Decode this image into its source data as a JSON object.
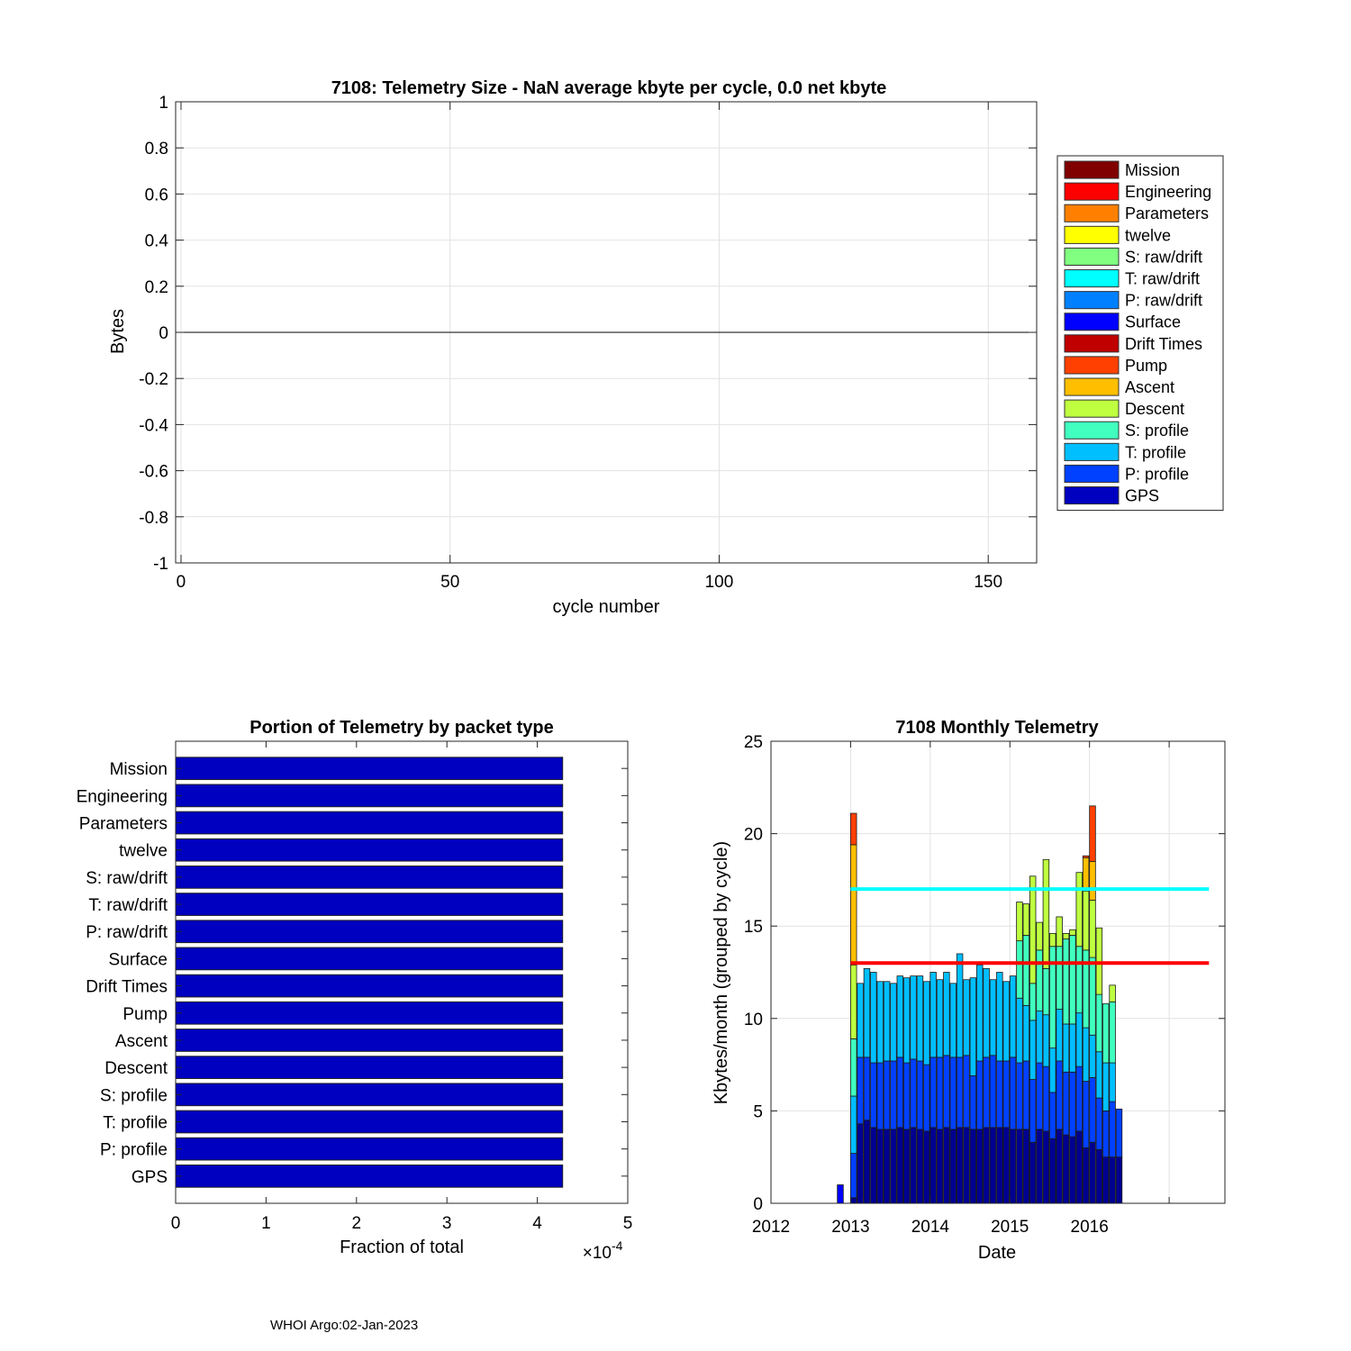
{
  "chart_data": [
    {
      "id": "telemetry-size",
      "type": "bar",
      "title": "7108: Telemetry Size -  NaN average kbyte per cycle,    0.0 net kbyte",
      "xlabel": "cycle number",
      "ylabel": "Bytes",
      "xlim": [
        -1,
        159
      ],
      "ylim": [
        -1,
        1
      ],
      "xticks": [
        "0",
        "50",
        "100",
        "150"
      ],
      "xtick_values": [
        0,
        50,
        100,
        150
      ],
      "yticks": [
        "1",
        "0.8",
        "0.6",
        "0.4",
        "0.2",
        "0",
        "-0.2",
        "-0.4",
        "-0.6",
        "-0.8",
        "-1"
      ],
      "ytick_values": [
        1,
        0.8,
        0.6,
        0.4,
        0.2,
        0,
        -0.2,
        -0.4,
        -0.6,
        -0.8,
        -1
      ],
      "grid": true,
      "series_values": "none (all zero)",
      "legend_placement": "outside-right",
      "legend": [
        {
          "label": "Mission",
          "color": "#800000"
        },
        {
          "label": "Engineering",
          "color": "#ff0000"
        },
        {
          "label": "Parameters",
          "color": "#ff8000"
        },
        {
          "label": "twelve",
          "color": "#ffff00"
        },
        {
          "label": "S: raw/drift",
          "color": "#80ff80"
        },
        {
          "label": "T: raw/drift",
          "color": "#00ffff"
        },
        {
          "label": "P: raw/drift",
          "color": "#0080ff"
        },
        {
          "label": "Surface",
          "color": "#0000ff"
        },
        {
          "label": "Drift Times",
          "color": "#c00000"
        },
        {
          "label": "Pump",
          "color": "#ff4000"
        },
        {
          "label": "Ascent",
          "color": "#ffbf00"
        },
        {
          "label": "Descent",
          "color": "#bfff40"
        },
        {
          "label": "S: profile",
          "color": "#40ffbf"
        },
        {
          "label": "T: profile",
          "color": "#00bfff"
        },
        {
          "label": "P: profile",
          "color": "#0040ff"
        },
        {
          "label": "GPS",
          "color": "#0000c0"
        }
      ]
    },
    {
      "id": "portion-by-packet",
      "type": "bar",
      "orientation": "horizontal",
      "title": "Portion of Telemetry by packet type",
      "xlabel": "Fraction of total",
      "x_exponent": "×10",
      "x_exponent_power": "-4",
      "xlim": [
        0,
        5
      ],
      "xticks": [
        "0",
        "1",
        "2",
        "3",
        "4",
        "5"
      ],
      "xtick_values": [
        0,
        1,
        2,
        3,
        4,
        5
      ],
      "categories": [
        "Mission",
        "Engineering",
        "Parameters",
        "twelve",
        "S: raw/drift",
        "T: raw/drift",
        "P: raw/drift",
        "Surface",
        "Drift Times",
        "Pump",
        "Ascent",
        "Descent",
        "S: profile",
        "T: profile",
        "P: profile",
        "GPS"
      ],
      "values": [
        4.28,
        4.28,
        4.28,
        4.28,
        4.28,
        4.28,
        4.28,
        4.28,
        4.28,
        4.28,
        4.28,
        4.28,
        4.28,
        4.28,
        4.28,
        4.28
      ],
      "bar_color": "#0000c0",
      "grid": false
    },
    {
      "id": "monthly-telemetry",
      "type": "bar",
      "stacked": true,
      "title": "7108 Monthly Telemetry",
      "xlabel": "Date",
      "ylabel": "Kbytes/month (grouped by cycle)",
      "xlim": [
        2012,
        2017.7
      ],
      "ylim": [
        0,
        25
      ],
      "xticks": [
        "2012",
        "2013",
        "2014",
        "2015",
        "2016",
        ""
      ],
      "xtick_values": [
        2012,
        2013,
        2014,
        2015,
        2016,
        2017
      ],
      "yticks": [
        "0",
        "5",
        "10",
        "15",
        "20",
        "25"
      ],
      "ytick_values": [
        0,
        5,
        10,
        15,
        20,
        25
      ],
      "grid": true,
      "reference_lines": [
        {
          "y": 17,
          "color": "#00ffff",
          "x_range": [
            2013,
            2017.5
          ]
        },
        {
          "y": 13,
          "color": "#ff0000",
          "x_range": [
            2013,
            2017.5
          ]
        }
      ],
      "segment_colors": [
        "#000090",
        "#0040ff",
        "#00bfff",
        "#40ffbf",
        "#bfff40",
        "#ffbf00",
        "#ff4000"
      ],
      "months": [
        {
          "date": "2012-11",
          "segments": [
            1.0
          ]
        },
        {
          "date": "2013-01",
          "segments": [
            0.3,
            2.4,
            3.1,
            3.1,
            4.0,
            6.5,
            1.7
          ]
        },
        {
          "date": "2013-02",
          "segments": [
            4.3,
            3.6,
            4.0
          ]
        },
        {
          "date": "2013-03",
          "segments": [
            4.5,
            3.4,
            4.8
          ]
        },
        {
          "date": "2013-04",
          "segments": [
            4.1,
            3.5,
            4.9
          ]
        },
        {
          "date": "2013-05",
          "segments": [
            4.0,
            3.6,
            4.4
          ]
        },
        {
          "date": "2013-06",
          "segments": [
            4.0,
            3.7,
            4.3
          ]
        },
        {
          "date": "2013-07",
          "segments": [
            4.0,
            3.7,
            4.2
          ]
        },
        {
          "date": "2013-08",
          "segments": [
            4.1,
            3.8,
            4.4
          ]
        },
        {
          "date": "2013-09",
          "segments": [
            4.0,
            3.6,
            4.6
          ]
        },
        {
          "date": "2013-10",
          "segments": [
            4.1,
            3.7,
            4.5
          ]
        },
        {
          "date": "2013-11",
          "segments": [
            4.0,
            3.7,
            4.6
          ]
        },
        {
          "date": "2013-12",
          "segments": [
            3.9,
            3.6,
            4.5
          ]
        },
        {
          "date": "2014-01",
          "segments": [
            4.1,
            3.8,
            4.6
          ]
        },
        {
          "date": "2014-02",
          "segments": [
            4.0,
            3.9,
            4.2
          ]
        },
        {
          "date": "2014-03",
          "segments": [
            4.1,
            3.9,
            4.5
          ]
        },
        {
          "date": "2014-04",
          "segments": [
            4.0,
            3.9,
            4.0
          ]
        },
        {
          "date": "2014-05",
          "segments": [
            4.1,
            3.8,
            5.6
          ]
        },
        {
          "date": "2014-06",
          "segments": [
            4.1,
            3.9,
            4.1
          ]
        },
        {
          "date": "2014-07",
          "segments": [
            4.0,
            2.9,
            5.3
          ]
        },
        {
          "date": "2014-08",
          "segments": [
            4.0,
            3.7,
            5.2
          ]
        },
        {
          "date": "2014-09",
          "segments": [
            4.1,
            3.8,
            4.8
          ]
        },
        {
          "date": "2014-10",
          "segments": [
            4.1,
            3.9,
            4.1
          ]
        },
        {
          "date": "2014-11",
          "segments": [
            4.1,
            3.6,
            4.8
          ]
        },
        {
          "date": "2014-12",
          "segments": [
            4.1,
            3.6,
            4.3
          ]
        },
        {
          "date": "2015-01",
          "segments": [
            4.0,
            3.9,
            4.4
          ]
        },
        {
          "date": "2015-02",
          "segments": [
            4.0,
            3.6,
            3.5,
            3.1,
            2.1
          ]
        },
        {
          "date": "2015-03",
          "segments": [
            4.0,
            3.7,
            3.0,
            3.8,
            1.7
          ]
        },
        {
          "date": "2015-04",
          "segments": [
            3.3,
            3.4,
            3.2,
            2.0,
            5.8
          ]
        },
        {
          "date": "2015-05",
          "segments": [
            4.0,
            3.6,
            2.8,
            3.3,
            1.5
          ]
        },
        {
          "date": "2015-06",
          "segments": [
            3.9,
            3.5,
            2.8,
            2.5,
            5.9
          ]
        },
        {
          "date": "2015-07",
          "segments": [
            3.5,
            2.5,
            2.4,
            5.5,
            0.7
          ]
        },
        {
          "date": "2015-08",
          "segments": [
            4.0,
            3.7,
            2.8,
            3.4,
            1.6
          ]
        },
        {
          "date": "2015-09",
          "segments": [
            3.7,
            3.4,
            2.6,
            4.6,
            0.3
          ]
        },
        {
          "date": "2015-10",
          "segments": [
            3.6,
            3.5,
            2.6,
            4.8,
            0.3
          ]
        },
        {
          "date": "2015-11",
          "segments": [
            3.9,
            3.5,
            2.9,
            3.6,
            4.0
          ]
        },
        {
          "date": "2015-12",
          "segments": [
            3.0,
            3.6,
            2.9,
            4.2,
            3.2,
            1.8,
            0.1
          ]
        },
        {
          "date": "2016-01",
          "segments": [
            3.3,
            3.5,
            2.3,
            4.2,
            3.1,
            2.1,
            3.0
          ]
        },
        {
          "date": "2016-02",
          "segments": [
            2.9,
            2.8,
            2.5,
            3.1,
            3.6
          ]
        },
        {
          "date": "2016-03",
          "segments": [
            2.5,
            2.5,
            2.6,
            3.2
          ]
        },
        {
          "date": "2016-04",
          "segments": [
            2.5,
            3.0,
            2.1,
            3.3,
            0.9
          ]
        },
        {
          "date": "2016-05",
          "segments": [
            2.5,
            2.6
          ]
        }
      ]
    }
  ],
  "footer": {
    "text": "WHOI Argo:02-Jan-2023"
  }
}
